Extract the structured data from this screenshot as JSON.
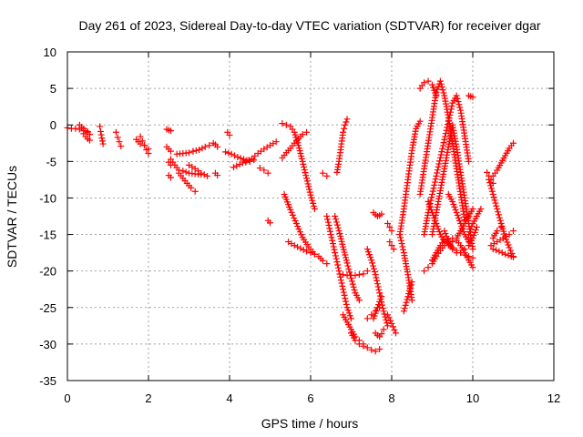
{
  "chart_data": {
    "type": "scatter",
    "title": "Day 261 of 2023, Sidereal Day-to-day VTEC variation (SDTVAR) for receiver dgar",
    "xlabel": "GPS time / hours",
    "ylabel": "SDTVAR / TECUs",
    "xlim": [
      0,
      12
    ],
    "ylim": [
      -35,
      10
    ],
    "xticks": [
      "0",
      "2",
      "4",
      "6",
      "8",
      "10",
      "12"
    ],
    "yticks": [
      "10",
      "5",
      "0",
      "-5",
      "-10",
      "-15",
      "-20",
      "-25",
      "-30",
      "-35"
    ],
    "grid": true,
    "marker": "+",
    "color": "#ff0000",
    "series": [
      {
        "x": [
          0.0,
          0.1,
          0.2,
          0.3,
          0.4,
          0.5
        ],
        "y": [
          -0.4,
          -0.5,
          -0.5,
          -0.6,
          -0.8,
          -0.9
        ]
      },
      {
        "x": [
          0.3,
          0.35,
          0.4,
          0.45,
          0.5,
          0.55
        ],
        "y": [
          0.0,
          -0.3,
          -0.5,
          -0.8,
          -1.0,
          -1.3
        ]
      },
      {
        "x": [
          0.4,
          0.45,
          0.5,
          0.55
        ],
        "y": [
          -1.2,
          -1.6,
          -1.9,
          -2.1
        ]
      },
      {
        "x": [
          0.8,
          0.82,
          0.85,
          0.88
        ],
        "y": [
          -0.2,
          -0.9,
          -1.8,
          -2.6
        ]
      },
      {
        "x": [
          1.2,
          1.24,
          1.28,
          1.32
        ],
        "y": [
          -1.0,
          -1.7,
          -2.3,
          -2.9
        ]
      },
      {
        "x": [
          1.7,
          1.8,
          1.9,
          2.0
        ],
        "y": [
          -2.0,
          -2.6,
          -2.8,
          -3.3
        ]
      },
      {
        "x": [
          1.8,
          1.85,
          1.9,
          1.95,
          2.0
        ],
        "y": [
          -1.6,
          -2.2,
          -2.8,
          -3.4,
          -3.9
        ]
      },
      {
        "x": [
          2.45,
          2.5,
          2.55
        ],
        "y": [
          -0.6,
          -0.7,
          -0.8
        ]
      },
      {
        "x": [
          2.45,
          2.5,
          2.55
        ],
        "y": [
          -3.0,
          -3.3,
          -3.6
        ]
      },
      {
        "x": [
          2.5,
          2.55
        ],
        "y": [
          -5.1,
          -5.5
        ]
      },
      {
        "x": [
          2.5,
          2.55
        ],
        "y": [
          -6.9,
          -7.2
        ]
      },
      {
        "x": [
          2.55,
          2.65,
          2.75
        ],
        "y": [
          -4.7,
          -5.5,
          -6.2
        ]
      },
      {
        "x": [
          2.7,
          2.85,
          3.0,
          3.1
        ],
        "y": [
          -4.0,
          -3.9,
          -3.8,
          -3.6
        ]
      },
      {
        "x": [
          2.75,
          2.85,
          2.95,
          3.05,
          3.15
        ],
        "y": [
          -6.6,
          -7.3,
          -8.0,
          -8.6,
          -9.1
        ]
      },
      {
        "x": [
          2.85,
          3.0,
          3.15,
          3.3
        ],
        "y": [
          -6.3,
          -6.6,
          -6.7,
          -6.8
        ]
      },
      {
        "x": [
          3.0,
          3.15,
          3.3,
          3.45
        ],
        "y": [
          -5.5,
          -6.0,
          -6.6,
          -7.0
        ]
      },
      {
        "x": [
          3.1,
          3.25,
          3.4,
          3.5
        ],
        "y": [
          -3.6,
          -3.4,
          -3.0,
          -2.8
        ]
      },
      {
        "x": [
          3.6,
          3.65,
          3.7
        ],
        "y": [
          -2.5,
          -2.7,
          -3.0
        ]
      },
      {
        "x": [
          3.65,
          3.7
        ],
        "y": [
          -6.6,
          -6.9
        ]
      },
      {
        "x": [
          3.95,
          4.0
        ],
        "y": [
          -1.0,
          -1.4
        ]
      },
      {
        "x": [
          3.9,
          4.05,
          4.2,
          4.35,
          4.5
        ],
        "y": [
          -3.7,
          -4.0,
          -4.4,
          -4.7,
          -5.0
        ]
      },
      {
        "x": [
          4.1,
          4.25,
          4.4,
          4.55,
          4.7,
          4.85,
          5.0,
          5.15
        ],
        "y": [
          -5.8,
          -5.4,
          -5.0,
          -4.6,
          -3.9,
          -3.3,
          -2.8,
          -2.3
        ]
      },
      {
        "x": [
          4.4,
          4.5,
          4.6
        ],
        "y": [
          -5.1,
          -5.0,
          -4.8
        ]
      },
      {
        "x": [
          4.75,
          4.85,
          4.95
        ],
        "y": [
          -5.9,
          -6.2,
          -6.6
        ]
      },
      {
        "x": [
          4.95,
          5.0
        ],
        "y": [
          -13.1,
          -13.4
        ]
      },
      {
        "x": [
          5.3,
          5.4,
          5.5,
          5.6,
          5.7,
          5.8,
          5.9,
          6.0,
          6.1
        ],
        "y": [
          0.2,
          0.0,
          -0.2,
          -1.0,
          -2.8,
          -5.0,
          -7.3,
          -9.6,
          -11.5
        ]
      },
      {
        "x": [
          5.3,
          5.4,
          5.5,
          5.6,
          5.7,
          5.8,
          5.9
        ],
        "y": [
          -4.5,
          -3.8,
          -3.2,
          -2.5,
          -1.9,
          -1.3,
          -1.0
        ]
      },
      {
        "x": [
          5.35,
          5.5,
          5.65,
          5.8,
          5.95,
          6.1
        ],
        "y": [
          -9.5,
          -11.6,
          -13.5,
          -15.4,
          -16.7,
          -17.7
        ]
      },
      {
        "x": [
          5.45,
          5.6,
          5.75,
          5.9,
          6.0,
          6.1
        ],
        "y": [
          -16.0,
          -16.5,
          -16.9,
          -17.3,
          -17.5,
          -17.7
        ]
      },
      {
        "x": [
          6.2,
          6.3,
          6.4
        ],
        "y": [
          -18.0,
          -18.6,
          -19.0
        ]
      },
      {
        "x": [
          6.3,
          6.4
        ],
        "y": [
          -6.6,
          -7.0
        ]
      },
      {
        "x": [
          6.4,
          6.5,
          6.6,
          6.7,
          6.8,
          6.9,
          7.0
        ],
        "y": [
          -12.5,
          -15.0,
          -17.5,
          -20.0,
          -22.5,
          -25.0,
          -26.5
        ]
      },
      {
        "x": [
          6.6,
          6.7,
          6.8,
          6.9,
          7.0,
          7.1,
          7.2
        ],
        "y": [
          -12.5,
          -14.5,
          -16.7,
          -18.9,
          -21.0,
          -23.0,
          -24.0
        ]
      },
      {
        "x": [
          6.65,
          6.7,
          6.75,
          6.8,
          6.85,
          6.9
        ],
        "y": [
          -6.5,
          -5.0,
          -3.0,
          -1.0,
          0.0,
          0.8
        ]
      },
      {
        "x": [
          6.8,
          6.9,
          7.0,
          7.1,
          7.2,
          7.3,
          7.4
        ],
        "y": [
          -20.5,
          -20.6,
          -20.6,
          -20.6,
          -20.5,
          -20.4,
          -20.0
        ]
      },
      {
        "x": [
          6.8,
          6.9,
          7.0,
          7.1,
          7.2,
          7.3
        ],
        "y": [
          -26.0,
          -27.0,
          -28.0,
          -29.0,
          -29.5,
          -30.0
        ]
      },
      {
        "x": [
          7.0,
          7.1,
          7.2,
          7.3,
          7.4
        ],
        "y": [
          -28.5,
          -29.5,
          -30.0,
          -30.3,
          -30.5
        ]
      },
      {
        "x": [
          7.4,
          7.5,
          7.6,
          7.7
        ],
        "y": [
          -26.5,
          -26.0,
          -25.5,
          -25.0
        ]
      },
      {
        "x": [
          7.4,
          7.5,
          7.6,
          7.7,
          7.8,
          7.9
        ],
        "y": [
          -17.0,
          -18.5,
          -20.5,
          -23.0,
          -25.5,
          -27.5
        ]
      },
      {
        "x": [
          7.5,
          7.6,
          7.7
        ],
        "y": [
          -30.8,
          -31.0,
          -30.7
        ]
      },
      {
        "x": [
          7.6,
          7.65,
          7.7,
          7.75,
          7.8
        ],
        "y": [
          -28.5,
          -28.8,
          -29.0,
          -28.6,
          -28.0
        ]
      },
      {
        "x": [
          7.55,
          7.6,
          7.65,
          7.7,
          7.75
        ],
        "y": [
          -12.0,
          -12.3,
          -12.5,
          -12.4,
          -12.2
        ]
      },
      {
        "x": [
          7.55,
          7.6,
          7.65,
          7.7,
          7.75
        ],
        "y": [
          -26.5,
          -25.8,
          -25.0,
          -24.2,
          -23.5
        ]
      },
      {
        "x": [
          7.9,
          7.95,
          8.0
        ],
        "y": [
          -13.5,
          -14.0,
          -14.5
        ]
      },
      {
        "x": [
          7.95,
          8.0,
          8.05
        ],
        "y": [
          -16.0,
          -16.5,
          -17.0
        ]
      },
      {
        "x": [
          7.9,
          8.0,
          8.1
        ],
        "y": [
          -26.0,
          -27.2,
          -28.5
        ]
      },
      {
        "x": [
          8.2,
          8.3,
          8.4,
          8.5
        ],
        "y": [
          -15.0,
          -17.5,
          -20.5,
          -24.0
        ]
      },
      {
        "x": [
          8.3,
          8.4,
          8.5
        ],
        "y": [
          -25.5,
          -23.5,
          -21.5
        ]
      },
      {
        "x": [
          8.2,
          8.3,
          8.4,
          8.5,
          8.6,
          8.7
        ],
        "y": [
          -15.0,
          -11.5,
          -7.5,
          -3.5,
          -0.5,
          0.5
        ]
      },
      {
        "x": [
          8.7,
          8.8,
          8.9,
          9.0,
          9.1
        ],
        "y": [
          5.0,
          5.8,
          6.0,
          5.5,
          4.0
        ]
      },
      {
        "x": [
          8.7,
          8.8,
          8.9,
          9.0,
          9.1,
          9.2,
          9.3,
          9.4,
          9.5,
          9.6,
          9.7,
          9.8
        ],
        "y": [
          -9.5,
          -6.0,
          -2.5,
          1.0,
          4.5,
          6.0,
          4.0,
          1.0,
          -2.5,
          -6.0,
          -9.5,
          -13.0
        ]
      },
      {
        "x": [
          8.8,
          8.9,
          9.0,
          9.1,
          9.2,
          9.3,
          9.4,
          9.5,
          9.6,
          9.7,
          9.8,
          9.9
        ],
        "y": [
          -15.0,
          -12.0,
          -9.5,
          -7.0,
          -4.5,
          -2.0,
          0.5,
          3.0,
          4.0,
          2.0,
          -1.5,
          -5.0
        ]
      },
      {
        "x": [
          8.9,
          9.0,
          9.1,
          9.2,
          9.3,
          9.4,
          9.5,
          9.6,
          9.7,
          9.8,
          9.9,
          10.0
        ],
        "y": [
          -10.5,
          -12.0,
          -13.5,
          -15.0,
          -16.0,
          -16.5,
          -16.0,
          -15.5,
          -14.5,
          -13.5,
          -12.5,
          -11.5
        ]
      },
      {
        "x": [
          8.8,
          8.9,
          9.0,
          9.1,
          9.2,
          9.3,
          9.4,
          9.5,
          9.6,
          9.7,
          9.8,
          9.9,
          10.0
        ],
        "y": [
          -20.0,
          -19.5,
          -19.0,
          -18.0,
          -17.2,
          -16.5,
          -15.8,
          -15.5,
          -15.8,
          -16.5,
          -17.5,
          -18.5,
          -19.5
        ]
      },
      {
        "x": [
          9.0,
          9.1,
          9.2,
          9.3,
          9.4,
          9.5,
          9.6,
          9.7,
          9.8,
          9.9,
          10.0
        ],
        "y": [
          -18.5,
          -17.5,
          -16.5,
          -15.8,
          -16.2,
          -16.8,
          -17.2,
          -17.5,
          -17.8,
          -18.0,
          -18.2
        ]
      },
      {
        "x": [
          9.0,
          9.1,
          9.2,
          9.3,
          9.4,
          9.5,
          9.6,
          9.7,
          9.8,
          9.9,
          10.0
        ],
        "y": [
          -15.0,
          -12.0,
          -9.0,
          -6.0,
          -3.0,
          0.0,
          -3.0,
          -6.5,
          -10.0,
          -13.5,
          -17.0
        ]
      },
      {
        "x": [
          9.3,
          9.4,
          9.5,
          9.6,
          9.7,
          9.8,
          9.9,
          10.0,
          10.1
        ],
        "y": [
          -14.5,
          -16.0,
          -17.0,
          -17.5,
          -17.5,
          -17.0,
          -16.5,
          -15.5,
          -14.0
        ]
      },
      {
        "x": [
          9.4,
          9.5,
          9.6,
          9.7,
          9.8,
          9.9
        ],
        "y": [
          -9.5,
          -10.5,
          -12.0,
          -13.5,
          -15.0,
          -16.0
        ]
      },
      {
        "x": [
          9.9,
          9.95,
          10.0
        ],
        "y": [
          4.0,
          3.9,
          3.8
        ]
      },
      {
        "x": [
          9.9,
          10.0,
          10.1,
          10.2
        ],
        "y": [
          -15.0,
          -13.5,
          -12.5,
          -11.5
        ]
      },
      {
        "x": [
          10.35,
          10.4,
          10.45,
          10.5
        ],
        "y": [
          -6.5,
          -7.0,
          -7.5,
          -8.0
        ]
      },
      {
        "x": [
          10.4,
          10.5,
          10.6,
          10.7,
          10.8,
          10.9,
          11.0
        ],
        "y": [
          -7.5,
          -7.0,
          -6.2,
          -5.2,
          -4.2,
          -3.2,
          -2.5
        ]
      },
      {
        "x": [
          10.4,
          10.5,
          10.6,
          10.7,
          10.8,
          10.9,
          11.0
        ],
        "y": [
          -7.5,
          -9.5,
          -11.5,
          -13.5,
          -15.3,
          -16.8,
          -18.0
        ]
      },
      {
        "x": [
          10.45,
          10.6,
          10.75,
          10.9,
          11.0
        ],
        "y": [
          -16.5,
          -16.0,
          -15.5,
          -15.0,
          -14.5
        ]
      },
      {
        "x": [
          10.5,
          10.65,
          10.8,
          10.95,
          11.0
        ],
        "y": [
          -17.0,
          -17.3,
          -17.7,
          -18.0,
          -18.1
        ]
      },
      {
        "x": [
          10.5,
          10.6,
          10.7
        ],
        "y": [
          -15.5,
          -14.5,
          -14.0
        ]
      }
    ]
  }
}
